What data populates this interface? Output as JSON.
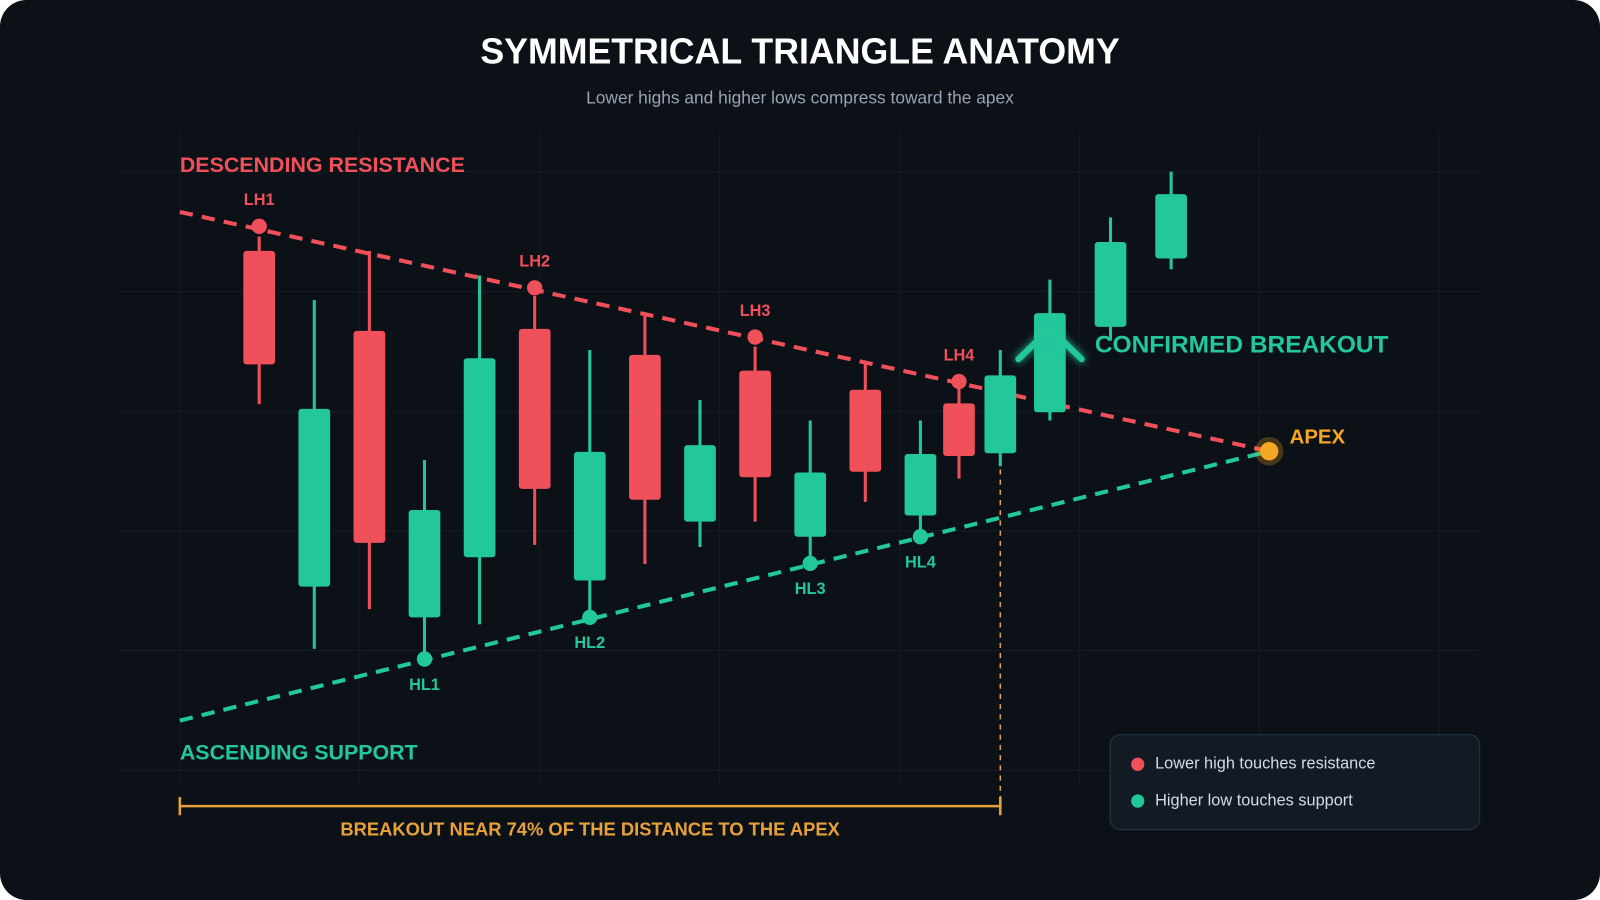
{
  "chart_data": {
    "type": "candlestick",
    "title": "SYMMETRICAL TRIANGLE ANATOMY",
    "subtitle": "Lower highs and higher lows compress toward the apex",
    "xlim": [
      -2,
      22
    ],
    "ylim": [
      0,
      100
    ],
    "up_color": "#22c79a",
    "down_color": "#f0505a",
    "x": [
      0,
      1,
      2,
      3,
      4,
      5,
      6,
      7,
      8,
      9,
      10,
      11,
      12,
      12.7,
      13.45,
      14.35,
      15.45,
      16.55
    ],
    "open": [
      82.7,
      33.6,
      71.0,
      29.1,
      37.9,
      71.3,
      34.5,
      67.5,
      43.1,
      65.2,
      40.9,
      62.4,
      44.0,
      60.4,
      53.1,
      59.1,
      71.6,
      81.6
    ],
    "high": [
      84.8,
      75.5,
      82.7,
      52.1,
      79.1,
      76.1,
      68.2,
      73.7,
      60.9,
      68.7,
      57.9,
      66.6,
      57.9,
      62.7,
      68.2,
      78.5,
      87.6,
      94.3
    ],
    "low": [
      60.3,
      24.5,
      30.3,
      23.0,
      28.1,
      39.7,
      30.1,
      36.9,
      39.4,
      43.1,
      37.6,
      46.0,
      41.8,
      49.4,
      51.2,
      57.9,
      69.6,
      80.0
    ],
    "close": [
      66.1,
      59.6,
      40.0,
      44.8,
      67.0,
      47.9,
      53.3,
      46.3,
      54.3,
      49.6,
      50.3,
      50.4,
      53.0,
      52.7,
      64.5,
      73.6,
      84.0,
      91.0
    ],
    "resistance": {
      "label": "DESCENDING RESISTANCE",
      "color": "#f0505a",
      "x": [
        -1.44,
        18.33
      ],
      "values": [
        88.4,
        53.4
      ]
    },
    "support": {
      "label": "ASCENDING SUPPORT",
      "color": "#22c79a",
      "x": [
        -1.44,
        18.33
      ],
      "values": [
        14.0,
        53.4
      ]
    },
    "lower_highs": {
      "name": "Lower high touches resistance",
      "color": "#f0505a",
      "labels": [
        "LH1",
        "LH2",
        "LH3",
        "LH4"
      ],
      "x": [
        0,
        5,
        9,
        12.7
      ],
      "values": [
        86.3,
        77.3,
        70.1,
        63.6
      ]
    },
    "higher_lows": {
      "name": "Higher low touches support",
      "color": "#22c79a",
      "labels": [
        "HL1",
        "HL2",
        "HL3",
        "HL4"
      ],
      "x": [
        3,
        6,
        10,
        12
      ],
      "values": [
        23.0,
        29.1,
        37.0,
        40.9
      ]
    },
    "apex": {
      "label": "APEX",
      "color": "#f5a623",
      "x": 18.33,
      "value": 53.4
    },
    "breakout": {
      "label": "CONFIRMED BREAKOUT",
      "color": "#22c79a",
      "x": 13.45,
      "bracket_label": "BREAKOUT NEAR 74% OF THE DISTANCE TO THE APEX",
      "bracket_x": [
        -1.44,
        13.45
      ],
      "bracket_color": "#e8a13a"
    }
  }
}
